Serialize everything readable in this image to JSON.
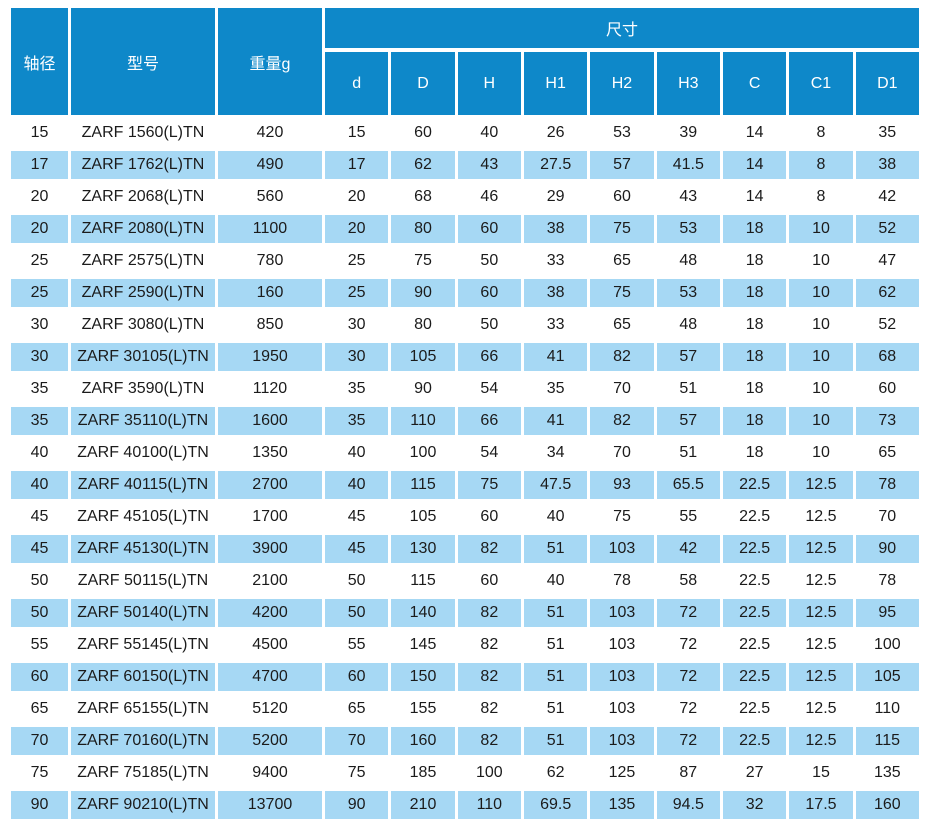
{
  "table": {
    "headers": {
      "shaft_diameter": "轴径",
      "model": "型号",
      "weight": "重量g",
      "dimensions_group": "尺寸",
      "dimension_cols": [
        "d",
        "D",
        "H",
        "H1",
        "H2",
        "H3",
        "C",
        "C1",
        "D1"
      ]
    },
    "rows": [
      [
        15,
        "ZARF 1560(L)TN",
        420,
        15,
        60,
        40,
        26,
        53,
        39,
        14,
        8,
        35
      ],
      [
        17,
        "ZARF 1762(L)TN",
        490,
        17,
        62,
        43,
        27.5,
        57,
        41.5,
        14,
        8,
        38
      ],
      [
        20,
        "ZARF 2068(L)TN",
        560,
        20,
        68,
        46,
        29,
        60,
        43,
        14,
        8,
        42
      ],
      [
        20,
        "ZARF 2080(L)TN",
        1100,
        20,
        80,
        60,
        38,
        75,
        53,
        18,
        10,
        52
      ],
      [
        25,
        "ZARF 2575(L)TN",
        780,
        25,
        75,
        50,
        33,
        65,
        48,
        18,
        10,
        47
      ],
      [
        25,
        "ZARF 2590(L)TN",
        160,
        25,
        90,
        60,
        38,
        75,
        53,
        18,
        10,
        62
      ],
      [
        30,
        "ZARF 3080(L)TN",
        850,
        30,
        80,
        50,
        33,
        65,
        48,
        18,
        10,
        52
      ],
      [
        30,
        "ZARF 30105(L)TN",
        1950,
        30,
        105,
        66,
        41,
        82,
        57,
        18,
        10,
        68
      ],
      [
        35,
        "ZARF 3590(L)TN",
        1120,
        35,
        90,
        54,
        35,
        70,
        51,
        18,
        10,
        60
      ],
      [
        35,
        "ZARF 35110(L)TN",
        1600,
        35,
        110,
        66,
        41,
        82,
        57,
        18,
        10,
        73
      ],
      [
        40,
        "ZARF 40100(L)TN",
        1350,
        40,
        100,
        54,
        34,
        70,
        51,
        18,
        10,
        65
      ],
      [
        40,
        "ZARF 40115(L)TN",
        2700,
        40,
        115,
        75,
        47.5,
        93,
        65.5,
        22.5,
        12.5,
        78
      ],
      [
        45,
        "ZARF 45105(L)TN",
        1700,
        45,
        105,
        60,
        40,
        75,
        55,
        22.5,
        12.5,
        70
      ],
      [
        45,
        "ZARF 45130(L)TN",
        3900,
        45,
        130,
        82,
        51,
        103,
        42,
        22.5,
        12.5,
        90
      ],
      [
        50,
        "ZARF 50115(L)TN",
        2100,
        50,
        115,
        60,
        40,
        78,
        58,
        22.5,
        12.5,
        78
      ],
      [
        50,
        "ZARF 50140(L)TN",
        4200,
        50,
        140,
        82,
        51,
        103,
        72,
        22.5,
        12.5,
        95
      ],
      [
        55,
        "ZARF 55145(L)TN",
        4500,
        55,
        145,
        82,
        51,
        103,
        72,
        22.5,
        12.5,
        100
      ],
      [
        60,
        "ZARF 60150(L)TN",
        4700,
        60,
        150,
        82,
        51,
        103,
        72,
        22.5,
        12.5,
        105
      ],
      [
        65,
        "ZARF 65155(L)TN",
        5120,
        65,
        155,
        82,
        51,
        103,
        72,
        22.5,
        12.5,
        110
      ],
      [
        70,
        "ZARF 70160(L)TN",
        5200,
        70,
        160,
        82,
        51,
        103,
        72,
        22.5,
        12.5,
        115
      ],
      [
        75,
        "ZARF 75185(L)TN",
        9400,
        75,
        185,
        100,
        62,
        125,
        87,
        27,
        15,
        135
      ],
      [
        90,
        "ZARF 90210(L)TN",
        13700,
        90,
        210,
        110,
        69.5,
        135,
        94.5,
        32,
        17.5,
        160
      ]
    ],
    "colors": {
      "header_bg": "#0e88c9",
      "header_text": "#ffffff",
      "alt_row_bg": "#a6d8f4",
      "body_text": "#1b1b1b"
    }
  }
}
